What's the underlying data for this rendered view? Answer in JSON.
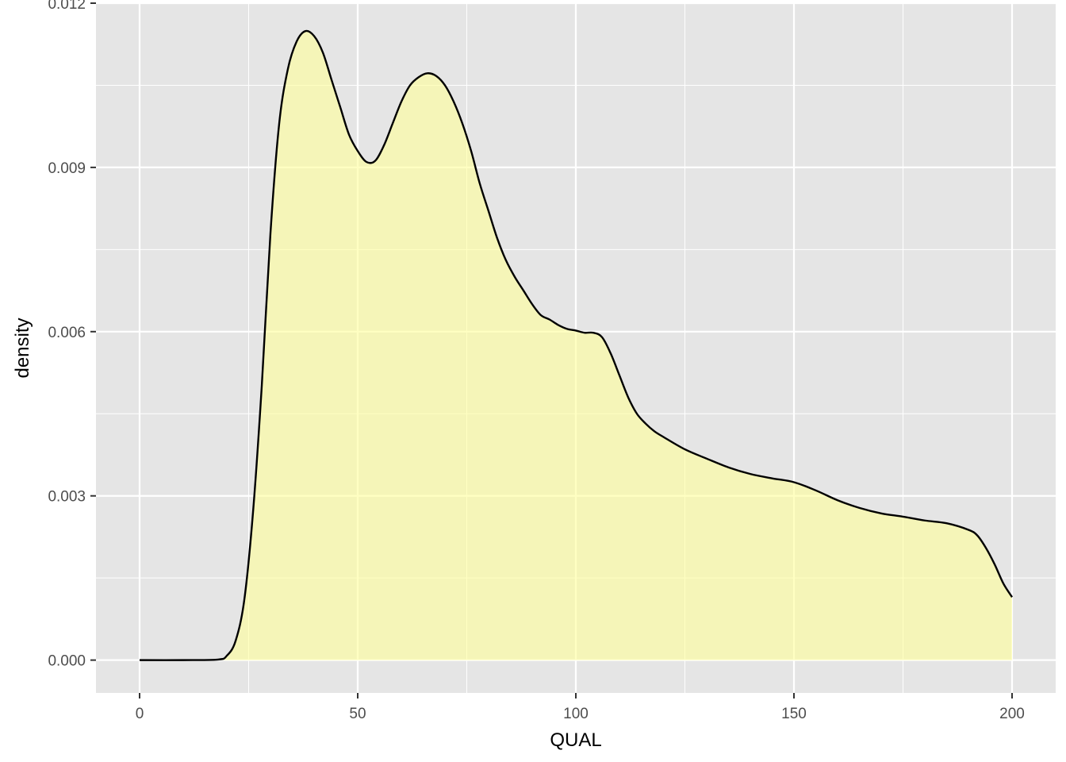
{
  "chart_data": {
    "type": "area",
    "title": "",
    "xlabel": "QUAL",
    "ylabel": "density",
    "xlim": [
      -10,
      210
    ],
    "ylim": [
      -0.0006,
      0.012
    ],
    "x_ticks": [
      0,
      50,
      100,
      150,
      200
    ],
    "x_tick_labels": [
      "0",
      "50",
      "100",
      "150",
      "200"
    ],
    "y_ticks": [
      0.0,
      0.003,
      0.006,
      0.009,
      0.012
    ],
    "y_tick_labels": [
      "0.000",
      "0.003",
      "0.006",
      "0.009",
      "0.012"
    ],
    "grid": true,
    "legend": "none",
    "colors": {
      "panel_background": "#e5e5e5",
      "grid_line": "#ffffff",
      "fill": "#ffff99",
      "fill_opacity": 0.6,
      "line": "#000000",
      "tick_label": "#4d4d4d",
      "tick_mark": "#333333"
    },
    "series": [
      {
        "x": [
          0,
          10,
          18,
          20,
          22,
          24,
          26,
          28,
          30,
          32,
          34,
          36,
          38,
          40,
          42,
          44,
          46,
          48,
          50,
          52,
          54,
          56,
          58,
          60,
          62,
          64,
          66,
          68,
          70,
          72,
          74,
          76,
          78,
          80,
          82,
          84,
          86,
          88,
          90,
          92,
          94,
          96,
          98,
          100,
          102,
          104,
          106,
          108,
          110,
          112,
          114,
          116,
          118,
          120,
          125,
          130,
          135,
          140,
          145,
          150,
          155,
          160,
          165,
          170,
          175,
          180,
          185,
          190,
          192,
          194,
          196,
          198,
          200
        ],
        "y": [
          0.0,
          0.0,
          1e-05,
          8e-05,
          0.00035,
          0.0011,
          0.0027,
          0.005,
          0.0078,
          0.0098,
          0.0108,
          0.0113,
          0.01149,
          0.0114,
          0.0111,
          0.0106,
          0.0101,
          0.0096,
          0.0093,
          0.0091,
          0.00912,
          0.0094,
          0.0098,
          0.0102,
          0.0105,
          0.01065,
          0.01072,
          0.01067,
          0.0105,
          0.0102,
          0.0098,
          0.0093,
          0.0087,
          0.0082,
          0.0077,
          0.0073,
          0.007,
          0.00675,
          0.0065,
          0.0063,
          0.00622,
          0.00612,
          0.00605,
          0.00602,
          0.00598,
          0.00598,
          0.0059,
          0.0056,
          0.0052,
          0.0048,
          0.0045,
          0.00432,
          0.00418,
          0.00408,
          0.00385,
          0.00368,
          0.00352,
          0.0034,
          0.00332,
          0.00325,
          0.0031,
          0.00292,
          0.00278,
          0.00268,
          0.00262,
          0.00255,
          0.0025,
          0.00238,
          0.00228,
          0.00205,
          0.00175,
          0.0014,
          0.00115
        ]
      }
    ]
  }
}
